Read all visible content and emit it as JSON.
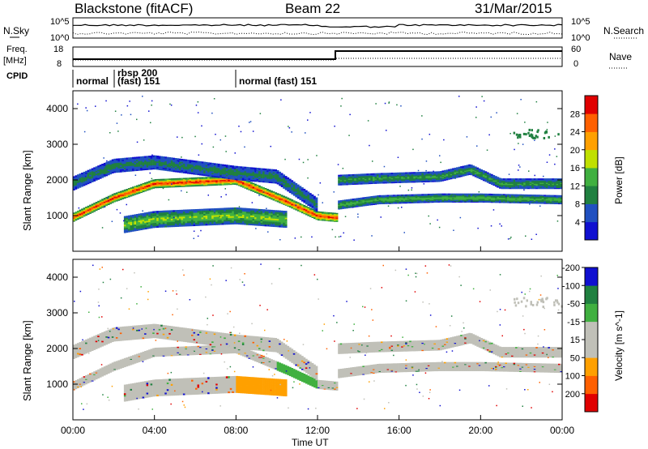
{
  "header": {
    "station": "Blackstone (fitACF)",
    "beam": "Beam 22",
    "date": "31/Mar/2015"
  },
  "strip_labels": {
    "nsky": "N.Sky",
    "nsearch": "N.Search",
    "freq_line1": "Freq.",
    "freq_line2": "[MHz]",
    "nave": "Nave",
    "cpid": "CPID"
  },
  "strip_ticks": {
    "noise_left": [
      "10^5",
      "10^0"
    ],
    "noise_right": [
      "10^5",
      "10^0"
    ],
    "freq_left": [
      "18",
      "8"
    ],
    "freq_right": [
      "60",
      "0"
    ]
  },
  "cpid_segments": [
    {
      "label_line1": "normal",
      "label_line2": ""
    },
    {
      "label_line1": "rbsp 200",
      "label_line2": "(fast) 151"
    },
    {
      "label_line1": "normal (fast) 151",
      "label_line2": ""
    }
  ],
  "colors": {
    "power": [
      "#1010d0",
      "#2050c0",
      "#208040",
      "#40b040",
      "#c0e000",
      "#ffa000",
      "#ff6000",
      "#e00000"
    ],
    "velocity": [
      "#e00000",
      "#ff6000",
      "#ffa000",
      "#c0c0b8",
      "#c0c0b8",
      "#40b040",
      "#208040",
      "#1010d0"
    ]
  },
  "chart_data": [
    {
      "type": "heatmap",
      "title": "Power",
      "ylabel": "Slant Range [km]",
      "xlabel": "",
      "x": [
        "00:00",
        "04:00",
        "08:00",
        "12:00",
        "16:00",
        "20:00",
        "00:00"
      ],
      "xlim_hours": [
        0,
        24
      ],
      "ylim": [
        0,
        4500
      ],
      "yticks": [
        "1000",
        "2000",
        "3000",
        "4000"
      ],
      "colorbar_label": "Power [dB]",
      "colorbar_ticks": [
        "4",
        "8",
        "12",
        "16",
        "20",
        "24",
        "28"
      ],
      "colorbar_range": [
        0,
        30
      ],
      "bands": [
        {
          "name": "near",
          "points": [
            [
              0,
              950
            ],
            [
              2,
              1500
            ],
            [
              4,
              1900
            ],
            [
              8,
              2000
            ],
            [
              10.5,
              1400
            ],
            [
              12,
              1000
            ],
            [
              13,
              950
            ]
          ],
          "width": 220,
          "peak_db": 28
        },
        {
          "name": "outer",
          "points": [
            [
              0,
              1900
            ],
            [
              2,
              2400
            ],
            [
              4,
              2500
            ],
            [
              8,
              2200
            ],
            [
              10,
              2100
            ],
            [
              12,
              1300
            ]
          ],
          "width": 350,
          "peak_db": 10
        },
        {
          "name": "low",
          "points": [
            [
              2.5,
              750
            ],
            [
              4,
              900
            ],
            [
              8,
              1000
            ],
            [
              10.5,
              900
            ]
          ],
          "width": 420,
          "peak_db": 16
        },
        {
          "name": "recover-low",
          "points": [
            [
              13,
              1300
            ],
            [
              15,
              1450
            ],
            [
              18,
              1500
            ],
            [
              20,
              1500
            ],
            [
              24,
              1450
            ]
          ],
          "width": 220,
          "peak_db": 14
        },
        {
          "name": "recover-high",
          "points": [
            [
              13,
              2000
            ],
            [
              15,
              2050
            ],
            [
              18,
              2100
            ],
            [
              19.5,
              2300
            ],
            [
              21,
              1900
            ],
            [
              24,
              1900
            ]
          ],
          "width": 260,
          "peak_db": 12
        }
      ]
    },
    {
      "type": "heatmap",
      "title": "Velocity",
      "ylabel": "Slant Range [km]",
      "xlabel": "Time UT",
      "x": [
        "00:00",
        "04:00",
        "08:00",
        "12:00",
        "16:00",
        "20:00",
        "00:00"
      ],
      "xlim_hours": [
        0,
        24
      ],
      "ylim": [
        0,
        4500
      ],
      "yticks": [
        "1000",
        "2000",
        "3000",
        "4000"
      ],
      "colorbar_label": "Velocity [m s^-1]",
      "colorbar_ticks": [
        "200",
        "100",
        "50",
        "15",
        "-15",
        "-50",
        "-100",
        "-200"
      ],
      "colorbar_range": [
        -250,
        250
      ],
      "dominant": "ground scatter (gray) with positive velocity (orange) near 800-1100 km from 08:00 to 10:30 UT"
    }
  ],
  "axis": {
    "xlabel": "Time UT"
  }
}
